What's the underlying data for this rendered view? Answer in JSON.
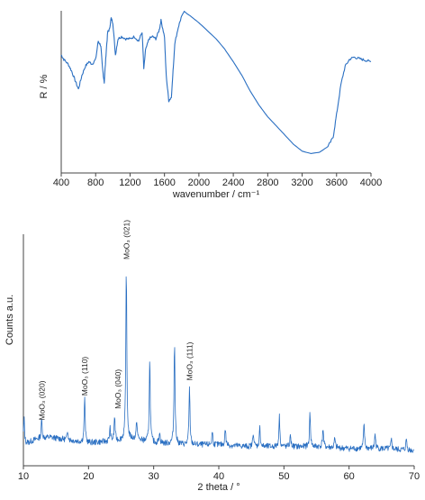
{
  "colors": {
    "series": "#2a6fc2",
    "axis": "#444444",
    "text": "#222222"
  },
  "chart_data": [
    {
      "type": "line",
      "xlabel": "wavenumber / cm⁻¹",
      "ylabel": "R / %",
      "xlim": [
        400,
        4000
      ],
      "x_ticks": [
        400,
        800,
        1200,
        1600,
        2000,
        2400,
        2800,
        3200,
        3600,
        4000
      ],
      "y_ticks": [],
      "grid": false,
      "series": [
        {
          "x": [
            400,
            430,
            480,
            520,
            560,
            600,
            640,
            680,
            720,
            760,
            800,
            830,
            860,
            880,
            900,
            920,
            940,
            960,
            980,
            1000,
            1030,
            1060,
            1100,
            1150,
            1200,
            1250,
            1300,
            1340,
            1360,
            1380,
            1420,
            1460,
            1500,
            1540,
            1560,
            1600,
            1620,
            1650,
            1680,
            1700,
            1720,
            1760,
            1800,
            1830,
            1860,
            1900,
            2000,
            2100,
            2200,
            2300,
            2400,
            2500,
            2600,
            2700,
            2800,
            2900,
            3000,
            3100,
            3200,
            3300,
            3400,
            3500,
            3560,
            3600,
            3650,
            3700,
            3750,
            3800,
            3850,
            3900,
            3950,
            4000
          ],
          "y": [
            62,
            58,
            54,
            48,
            40,
            32,
            44,
            52,
            56,
            54,
            58,
            74,
            70,
            50,
            38,
            62,
            82,
            84,
            94,
            90,
            62,
            76,
            78,
            76,
            76,
            78,
            74,
            82,
            50,
            66,
            76,
            78,
            76,
            84,
            92,
            78,
            44,
            22,
            25,
            48,
            72,
            86,
            96,
            100,
            98,
            96,
            90,
            83,
            76,
            67,
            56,
            44,
            30,
            18,
            8,
            0,
            -8,
            -16,
            -22,
            -24,
            -23,
            -18,
            -10,
            10,
            36,
            52,
            58,
            60,
            59,
            58,
            57,
            56
          ]
        }
      ]
    },
    {
      "type": "line",
      "xlabel": "2 theta / °",
      "ylabel": "Counts a.u.",
      "xlim": [
        10,
        70
      ],
      "x_ticks": [
        10,
        20,
        30,
        40,
        50,
        60,
        70
      ],
      "y_ticks": [],
      "grid": false,
      "annotations": [
        {
          "text": "MoO₃ (020)",
          "x": 12.8,
          "y": 15
        },
        {
          "text": "MoO₃ (110)",
          "x": 19.4,
          "y": 28
        },
        {
          "text": "MoO₃ (040)",
          "x": 24.5,
          "y": 21
        },
        {
          "text": "MoO₃ (021)",
          "x": 25.8,
          "y": 100
        },
        {
          "text": "MoO₃ (111)",
          "x": 35.5,
          "y": 36
        }
      ],
      "series": [
        {
          "baseline": [
            [
              10,
              3
            ],
            [
              12,
              6
            ],
            [
              14,
              7
            ],
            [
              16,
              6
            ],
            [
              20,
              4
            ],
            [
              24,
              5
            ],
            [
              27,
              6
            ],
            [
              30,
              4
            ],
            [
              35,
              3
            ],
            [
              40,
              3
            ],
            [
              45,
              2
            ],
            [
              50,
              2
            ],
            [
              55,
              2
            ],
            [
              60,
              1
            ],
            [
              65,
              1
            ],
            [
              70,
              0
            ]
          ],
          "peaks": [
            {
              "x": 10.1,
              "h": 14
            },
            {
              "x": 12.8,
              "h": 10
            },
            {
              "x": 16.8,
              "h": 5
            },
            {
              "x": 19.4,
              "h": 24
            },
            {
              "x": 23.3,
              "h": 7
            },
            {
              "x": 24.0,
              "h": 13
            },
            {
              "x": 25.8,
              "h": 92
            },
            {
              "x": 27.4,
              "h": 10
            },
            {
              "x": 29.4,
              "h": 44
            },
            {
              "x": 30.9,
              "h": 6
            },
            {
              "x": 33.2,
              "h": 55
            },
            {
              "x": 35.5,
              "h": 30
            },
            {
              "x": 39.0,
              "h": 7
            },
            {
              "x": 41.0,
              "h": 9
            },
            {
              "x": 45.3,
              "h": 8
            },
            {
              "x": 46.3,
              "h": 10
            },
            {
              "x": 49.3,
              "h": 16
            },
            {
              "x": 51.0,
              "h": 6
            },
            {
              "x": 54.0,
              "h": 18
            },
            {
              "x": 56.0,
              "h": 10
            },
            {
              "x": 57.8,
              "h": 5
            },
            {
              "x": 62.3,
              "h": 13
            },
            {
              "x": 64.0,
              "h": 8
            },
            {
              "x": 66.5,
              "h": 5
            },
            {
              "x": 68.8,
              "h": 6
            }
          ]
        }
      ]
    }
  ]
}
